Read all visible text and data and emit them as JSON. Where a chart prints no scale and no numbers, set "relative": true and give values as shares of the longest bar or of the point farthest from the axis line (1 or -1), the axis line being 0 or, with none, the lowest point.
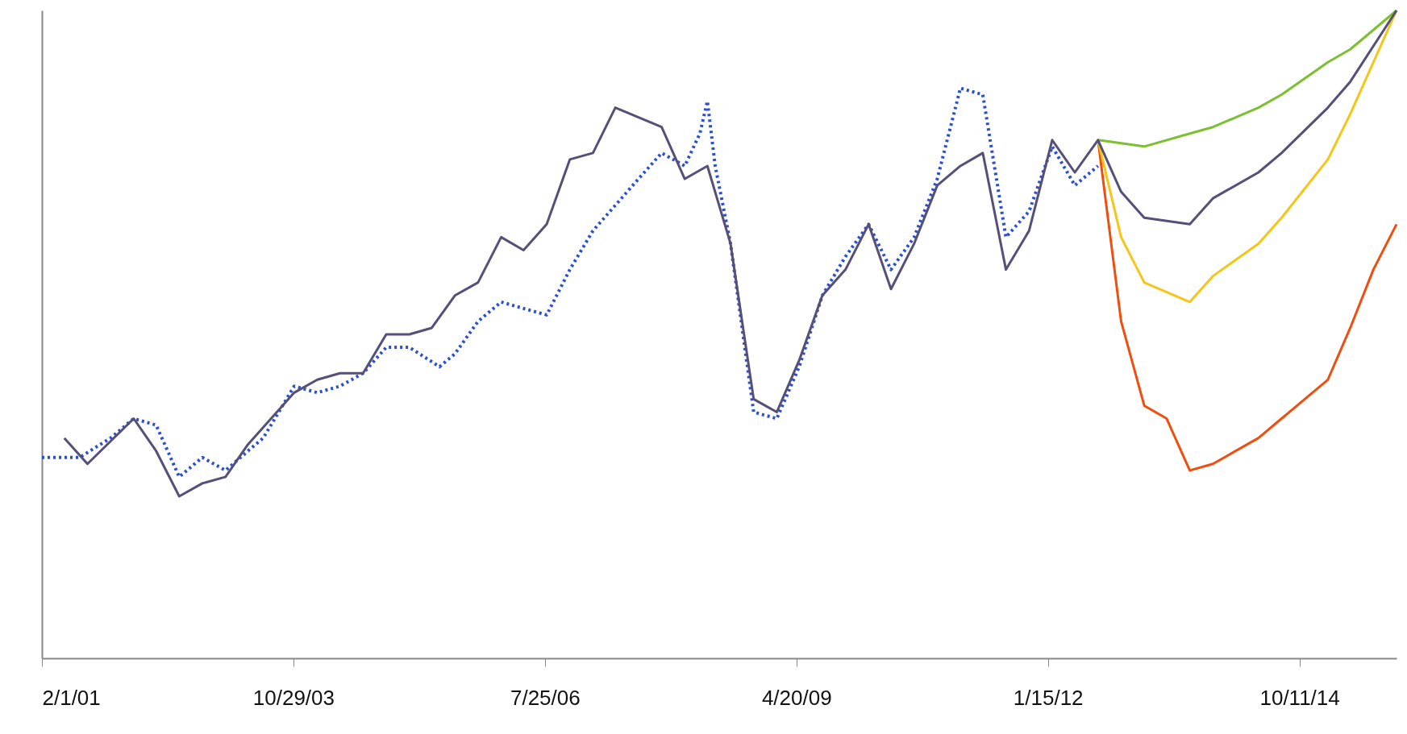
{
  "chart_data": {
    "type": "line",
    "relative": true,
    "xlim": [
      "2001-02-01",
      "2015-11-01"
    ],
    "xticks": [
      {
        "value": "2001-02-01",
        "label": "2/1/01"
      },
      {
        "value": "2003-10-29",
        "label": "10/29/03"
      },
      {
        "value": "2006-07-25",
        "label": "7/25/06"
      },
      {
        "value": "2009-04-20",
        "label": "4/20/09"
      },
      {
        "value": "2012-01-15",
        "label": "1/15/12"
      },
      {
        "value": "2014-10-11",
        "label": "10/11/14"
      }
    ],
    "series": [
      {
        "color": "#2a4fd0",
        "line_style": "dotted",
        "x": [
          "2001-02",
          "2001-07",
          "2001-11",
          "2002-02",
          "2002-05",
          "2002-08",
          "2002-11",
          "2003-02",
          "2003-05",
          "2003-07",
          "2003-11",
          "2004-02",
          "2004-05",
          "2004-08",
          "2004-11",
          "2005-02",
          "2005-06",
          "2005-08",
          "2005-11",
          "2006-02",
          "2006-05",
          "2006-08",
          "2006-11",
          "2007-02",
          "2007-08",
          "2007-11",
          "2008-02",
          "2008-04",
          "2008-05",
          "2008-06",
          "2008-08",
          "2008-11",
          "2009-02",
          "2009-05",
          "2009-08",
          "2009-11",
          "2010-02",
          "2010-05",
          "2010-08",
          "2010-11",
          "2011-02",
          "2011-05",
          "2011-08",
          "2011-11",
          "2012-02",
          "2012-05",
          "2012-08"
        ],
        "values": [
          0.31,
          0.31,
          0.34,
          0.37,
          0.36,
          0.28,
          0.31,
          0.29,
          0.32,
          0.34,
          0.42,
          0.41,
          0.42,
          0.44,
          0.48,
          0.48,
          0.45,
          0.47,
          0.52,
          0.55,
          0.54,
          0.53,
          0.6,
          0.66,
          0.74,
          0.78,
          0.76,
          0.81,
          0.86,
          0.76,
          0.64,
          0.38,
          0.37,
          0.45,
          0.56,
          0.62,
          0.67,
          0.6,
          0.65,
          0.74,
          0.88,
          0.87,
          0.65,
          0.69,
          0.79,
          0.73,
          0.76
        ]
      },
      {
        "color": "#f04e0f",
        "x": [
          "2012-08",
          "2012-11",
          "2013-02",
          "2013-05",
          "2013-08",
          "2013-11",
          "2014-05",
          "2014-08",
          "2015-02",
          "2015-05",
          "2015-08",
          "2015-11"
        ],
        "values": [
          0.8,
          0.52,
          0.39,
          0.37,
          0.29,
          0.3,
          0.34,
          0.37,
          0.43,
          0.51,
          0.6,
          0.67
        ]
      },
      {
        "color": "#f5c518",
        "x": [
          "2012-08",
          "2012-11",
          "2013-02",
          "2013-08",
          "2013-11",
          "2014-05",
          "2014-08",
          "2015-02",
          "2015-05",
          "2015-11"
        ],
        "values": [
          0.8,
          0.65,
          0.58,
          0.55,
          0.59,
          0.64,
          0.68,
          0.77,
          0.84,
          1
        ]
      },
      {
        "color": "#7cc031",
        "x": [
          "2012-08",
          "2013-02",
          "2013-08",
          "2013-11",
          "2014-05",
          "2014-08",
          "2015-02",
          "2015-05",
          "2015-11"
        ],
        "values": [
          0.8,
          0.79,
          0.81,
          0.82,
          0.85,
          0.87,
          0.92,
          0.94,
          1
        ]
      },
      {
        "color": "#555077",
        "x": [
          "2001-05",
          "2001-08",
          "2002-02",
          "2002-05",
          "2002-08",
          "2002-11",
          "2003-02",
          "2003-05",
          "2003-08",
          "2003-11",
          "2004-02",
          "2004-05",
          "2004-08",
          "2004-11",
          "2005-02",
          "2005-05",
          "2005-08",
          "2005-11",
          "2006-02",
          "2006-05",
          "2006-08",
          "2006-11",
          "2007-02",
          "2007-05",
          "2007-11",
          "2008-02",
          "2008-05",
          "2008-08",
          "2008-11",
          "2009-02",
          "2009-05",
          "2009-08",
          "2009-11",
          "2010-02",
          "2010-05",
          "2010-08",
          "2010-11",
          "2011-02",
          "2011-05",
          "2011-08",
          "2011-11",
          "2012-02",
          "2012-05",
          "2012-08",
          "2012-11",
          "2013-02",
          "2013-08",
          "2013-11",
          "2014-05",
          "2014-08",
          "2015-02",
          "2015-05",
          "2015-11"
        ],
        "values": [
          0.34,
          0.3,
          0.37,
          0.32,
          0.25,
          0.27,
          0.28,
          0.33,
          0.37,
          0.41,
          0.43,
          0.44,
          0.44,
          0.5,
          0.5,
          0.51,
          0.56,
          0.58,
          0.65,
          0.63,
          0.67,
          0.77,
          0.78,
          0.85,
          0.82,
          0.74,
          0.76,
          0.64,
          0.4,
          0.38,
          0.46,
          0.56,
          0.6,
          0.67,
          0.57,
          0.64,
          0.73,
          0.76,
          0.78,
          0.6,
          0.66,
          0.8,
          0.75,
          0.8,
          0.72,
          0.68,
          0.67,
          0.71,
          0.75,
          0.78,
          0.85,
          0.89,
          1
        ]
      }
    ]
  }
}
